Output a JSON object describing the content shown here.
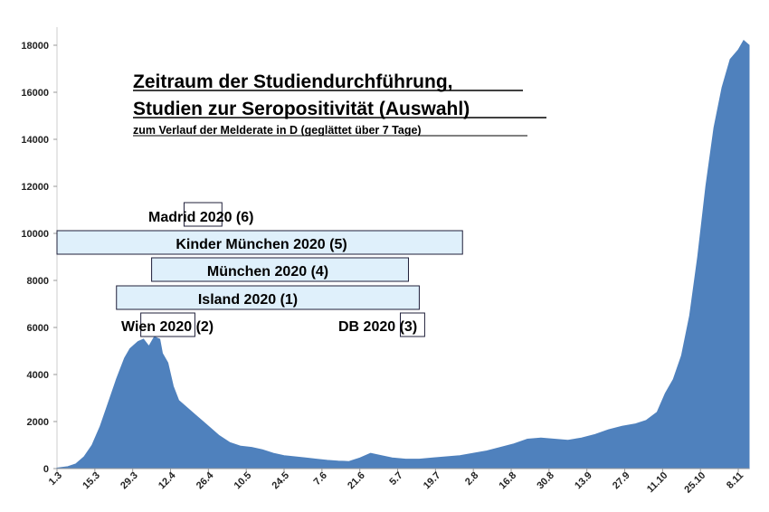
{
  "chart_data": {
    "type": "area",
    "title_line1": "Zeitraum der Studiendurchführung,",
    "title_line2": "Studien zur Seropositivität (Auswahl)",
    "subtitle": "zum Verlauf der Melderate in D (geglättet über 7 Tage)",
    "xlabel": "",
    "ylabel": "",
    "ylim": [
      0,
      18000
    ],
    "y_ticks": [
      0,
      2000,
      4000,
      6000,
      8000,
      10000,
      12000,
      14000,
      16000,
      18000
    ],
    "x_ticks": [
      "1.3",
      "15.3",
      "29.3",
      "12.4",
      "26.4",
      "10.5",
      "24.5",
      "7.6",
      "21.6",
      "5.7",
      "19.7",
      "2.8",
      "16.8",
      "30.8",
      "13.9",
      "27.9",
      "11.10",
      "25.10",
      "8.11"
    ],
    "x_start": "2020-03-01",
    "x_end": "2020-11-12",
    "color": "#4f81bd",
    "series": [
      {
        "x": [
          "2020-03-01",
          "2020-03-05",
          "2020-03-08",
          "2020-03-11",
          "2020-03-14",
          "2020-03-17",
          "2020-03-20",
          "2020-03-23",
          "2020-03-26",
          "2020-03-28",
          "2020-03-31",
          "2020-04-02",
          "2020-04-04",
          "2020-04-06",
          "2020-04-08",
          "2020-04-09",
          "2020-04-11",
          "2020-04-13",
          "2020-04-15",
          "2020-04-17",
          "2020-04-19",
          "2020-04-21",
          "2020-04-24",
          "2020-04-27",
          "2020-04-30",
          "2020-05-04",
          "2020-05-08",
          "2020-05-12",
          "2020-05-16",
          "2020-05-20",
          "2020-05-24",
          "2020-05-28",
          "2020-06-01",
          "2020-06-05",
          "2020-06-09",
          "2020-06-13",
          "2020-06-17",
          "2020-06-21",
          "2020-06-25",
          "2020-06-29",
          "2020-07-03",
          "2020-07-08",
          "2020-07-13",
          "2020-07-18",
          "2020-07-23",
          "2020-07-28",
          "2020-08-02",
          "2020-08-07",
          "2020-08-12",
          "2020-08-17",
          "2020-08-22",
          "2020-08-27",
          "2020-09-01",
          "2020-09-06",
          "2020-09-11",
          "2020-09-16",
          "2020-09-21",
          "2020-09-26",
          "2020-10-01",
          "2020-10-05",
          "2020-10-09",
          "2020-10-12",
          "2020-10-15",
          "2020-10-18",
          "2020-10-21",
          "2020-10-24",
          "2020-10-27",
          "2020-10-30",
          "2020-11-02",
          "2020-11-05",
          "2020-11-08",
          "2020-11-10",
          "2020-11-12"
        ],
        "values": [
          20,
          80,
          200,
          500,
          1000,
          1800,
          2800,
          3800,
          4700,
          5100,
          5400,
          5500,
          5200,
          5600,
          5500,
          4900,
          4500,
          3500,
          2900,
          2700,
          2500,
          2300,
          2000,
          1700,
          1400,
          1100,
          950,
          900,
          800,
          650,
          550,
          500,
          450,
          400,
          350,
          320,
          300,
          450,
          650,
          550,
          450,
          400,
          400,
          450,
          500,
          550,
          650,
          750,
          900,
          1050,
          1250,
          1300,
          1250,
          1200,
          1300,
          1450,
          1650,
          1800,
          1900,
          2050,
          2400,
          3200,
          3800,
          4800,
          6500,
          9000,
          12000,
          14500,
          16200,
          17400,
          17800,
          18200,
          18000
        ]
      }
    ]
  },
  "studies": [
    {
      "label": "Madrid 2020 (6)",
      "start": "2020-04-17",
      "end": "2020-05-01",
      "filled": false
    },
    {
      "label": "Kinder München 2020 (5)",
      "start": "2020-03-01",
      "end": "2020-07-29",
      "filled": true
    },
    {
      "label": "München 2020 (4)",
      "start": "2020-04-05",
      "end": "2020-07-09",
      "filled": true
    },
    {
      "label": "Island 2020 (1)",
      "start": "2020-03-23",
      "end": "2020-07-13",
      "filled": true
    },
    {
      "label": "Wien 2020 (2)",
      "start": "2020-04-01",
      "end": "2020-04-21",
      "filled": false
    },
    {
      "label": "DB 2020 (3)",
      "start": "2020-07-06",
      "end": "2020-07-15",
      "filled": false
    }
  ]
}
